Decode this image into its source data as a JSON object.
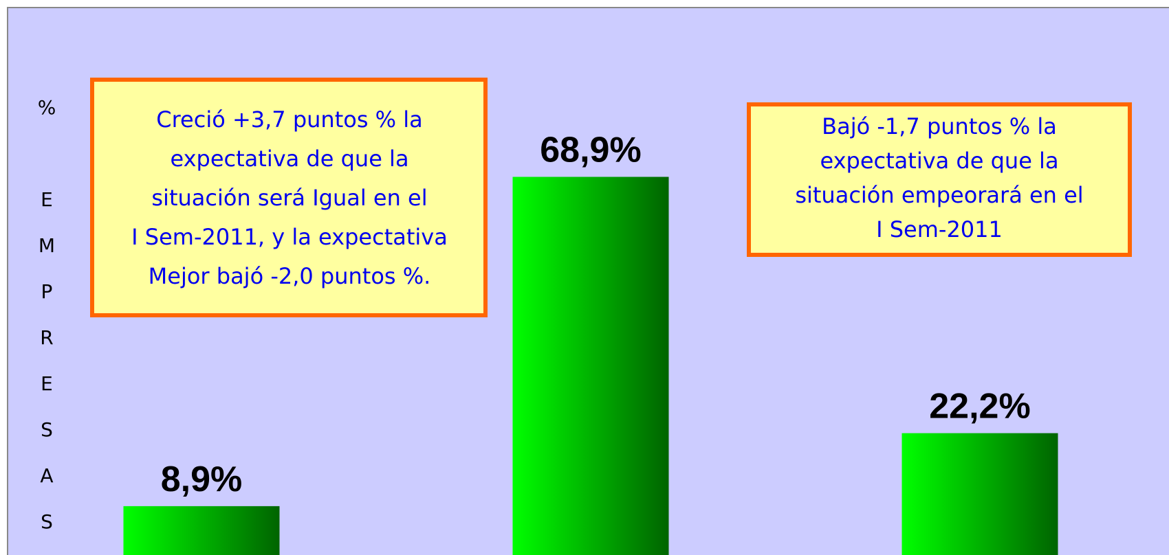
{
  "chart_data": {
    "type": "bar",
    "y_label": "% EMPRESAS",
    "categories": [
      null,
      null,
      null
    ],
    "values": [
      8.9,
      68.9,
      22.2
    ],
    "value_labels": [
      "8,9%",
      "68,9%",
      "22,2%"
    ],
    "colors": [
      "#00ff00",
      "#006400"
    ],
    "ylim": [
      0,
      100
    ],
    "annotations": [
      [
        "Creció +3,7 puntos % la",
        "expectativa de que la",
        "situación será Igual en el",
        "I Sem-2011, y la expectativa",
        "Mejor bajó  -2,0 puntos %."
      ],
      [
        "Bajó -1,7 puntos % la",
        "expectativa de que la",
        "situación empeorará en el",
        "I Sem-2011"
      ]
    ]
  }
}
